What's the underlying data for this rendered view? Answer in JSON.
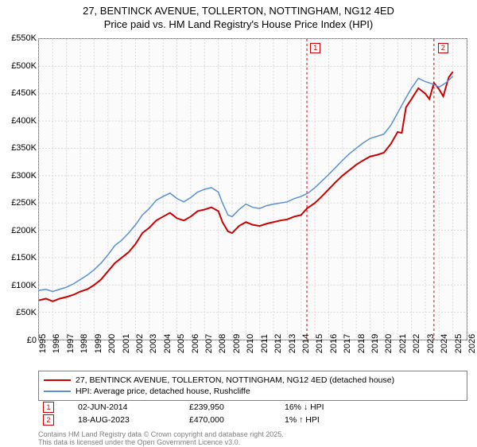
{
  "title_line1": "27, BENTINCK AVENUE, TOLLERTON, NOTTINGHAM, NG12 4ED",
  "title_line2": "Price paid vs. HM Land Registry's House Price Index (HPI)",
  "chart": {
    "type": "line",
    "background_color": "#fbfbfb",
    "border_color": "#808080",
    "grid_color": "#d9d9d9",
    "x": {
      "min": 1995,
      "max": 2026,
      "ticks": [
        1995,
        1996,
        1997,
        1998,
        1999,
        2000,
        2001,
        2002,
        2003,
        2004,
        2005,
        2006,
        2007,
        2008,
        2009,
        2010,
        2011,
        2012,
        2013,
        2014,
        2015,
        2016,
        2017,
        2018,
        2019,
        2020,
        2021,
        2022,
        2023,
        2024,
        2025,
        2026
      ]
    },
    "y": {
      "min": 0,
      "max": 550,
      "ticks": [
        0,
        50,
        100,
        150,
        200,
        250,
        300,
        350,
        400,
        450,
        500,
        550
      ],
      "tick_prefix": "£",
      "tick_suffix": "K"
    },
    "series": [
      {
        "name": "price_paid",
        "color": "#cc0000",
        "width": 2,
        "data": [
          [
            1995,
            72
          ],
          [
            1995.5,
            75
          ],
          [
            1996,
            70
          ],
          [
            1996.5,
            75
          ],
          [
            1997,
            78
          ],
          [
            1997.5,
            82
          ],
          [
            1998,
            88
          ],
          [
            1998.5,
            92
          ],
          [
            1999,
            100
          ],
          [
            1999.5,
            110
          ],
          [
            2000,
            125
          ],
          [
            2000.5,
            140
          ],
          [
            2001,
            150
          ],
          [
            2001.5,
            160
          ],
          [
            2002,
            175
          ],
          [
            2002.5,
            195
          ],
          [
            2003,
            205
          ],
          [
            2003.5,
            218
          ],
          [
            2004,
            225
          ],
          [
            2004.5,
            232
          ],
          [
            2005,
            222
          ],
          [
            2005.5,
            218
          ],
          [
            2006,
            225
          ],
          [
            2006.5,
            235
          ],
          [
            2007,
            238
          ],
          [
            2007.5,
            242
          ],
          [
            2008,
            235
          ],
          [
            2008.3,
            215
          ],
          [
            2008.7,
            198
          ],
          [
            2009,
            195
          ],
          [
            2009.5,
            208
          ],
          [
            2010,
            215
          ],
          [
            2010.5,
            210
          ],
          [
            2011,
            208
          ],
          [
            2011.5,
            212
          ],
          [
            2012,
            215
          ],
          [
            2012.5,
            218
          ],
          [
            2013,
            220
          ],
          [
            2013.5,
            225
          ],
          [
            2014,
            228
          ],
          [
            2014.42,
            240
          ],
          [
            2015,
            250
          ],
          [
            2015.5,
            262
          ],
          [
            2016,
            275
          ],
          [
            2016.5,
            288
          ],
          [
            2017,
            300
          ],
          [
            2017.5,
            310
          ],
          [
            2018,
            320
          ],
          [
            2018.5,
            328
          ],
          [
            2019,
            335
          ],
          [
            2019.5,
            338
          ],
          [
            2020,
            342
          ],
          [
            2020.5,
            358
          ],
          [
            2021,
            380
          ],
          [
            2021.3,
            378
          ],
          [
            2021.6,
            425
          ],
          [
            2022,
            440
          ],
          [
            2022.5,
            460
          ],
          [
            2023,
            450
          ],
          [
            2023.3,
            440
          ],
          [
            2023.63,
            470
          ],
          [
            2024,
            458
          ],
          [
            2024.3,
            445
          ],
          [
            2024.7,
            480
          ],
          [
            2025,
            490
          ]
        ]
      },
      {
        "name": "hpi",
        "color": "#5b8fd6",
        "width": 1.5,
        "data": [
          [
            1995,
            90
          ],
          [
            1995.5,
            92
          ],
          [
            1996,
            88
          ],
          [
            1996.5,
            92
          ],
          [
            1997,
            96
          ],
          [
            1997.5,
            102
          ],
          [
            1998,
            110
          ],
          [
            1998.5,
            118
          ],
          [
            1999,
            128
          ],
          [
            1999.5,
            140
          ],
          [
            2000,
            155
          ],
          [
            2000.5,
            172
          ],
          [
            2001,
            182
          ],
          [
            2001.5,
            195
          ],
          [
            2002,
            210
          ],
          [
            2002.5,
            228
          ],
          [
            2003,
            240
          ],
          [
            2003.5,
            255
          ],
          [
            2004,
            262
          ],
          [
            2004.5,
            268
          ],
          [
            2005,
            258
          ],
          [
            2005.5,
            252
          ],
          [
            2006,
            260
          ],
          [
            2006.5,
            270
          ],
          [
            2007,
            275
          ],
          [
            2007.5,
            278
          ],
          [
            2008,
            270
          ],
          [
            2008.3,
            250
          ],
          [
            2008.7,
            228
          ],
          [
            2009,
            225
          ],
          [
            2009.5,
            238
          ],
          [
            2010,
            248
          ],
          [
            2010.5,
            242
          ],
          [
            2011,
            240
          ],
          [
            2011.5,
            245
          ],
          [
            2012,
            248
          ],
          [
            2012.5,
            250
          ],
          [
            2013,
            252
          ],
          [
            2013.5,
            258
          ],
          [
            2014,
            262
          ],
          [
            2014.5,
            268
          ],
          [
            2015,
            278
          ],
          [
            2015.5,
            290
          ],
          [
            2016,
            302
          ],
          [
            2016.5,
            315
          ],
          [
            2017,
            328
          ],
          [
            2017.5,
            340
          ],
          [
            2018,
            350
          ],
          [
            2018.5,
            360
          ],
          [
            2019,
            368
          ],
          [
            2019.5,
            372
          ],
          [
            2020,
            376
          ],
          [
            2020.5,
            392
          ],
          [
            2021,
            415
          ],
          [
            2021.5,
            438
          ],
          [
            2022,
            460
          ],
          [
            2022.5,
            478
          ],
          [
            2023,
            472
          ],
          [
            2023.5,
            468
          ],
          [
            2024,
            462
          ],
          [
            2024.5,
            470
          ],
          [
            2025,
            482
          ]
        ]
      }
    ]
  },
  "markers": [
    {
      "n": "1",
      "x": 2014.42,
      "date": "02-JUN-2014",
      "price": "£239,950",
      "delta": "16% ↓ HPI",
      "color": "#cc0000"
    },
    {
      "n": "2",
      "x": 2023.63,
      "date": "18-AUG-2023",
      "price": "£470,000",
      "delta": "1% ↑ HPI",
      "color": "#cc0000"
    }
  ],
  "legend": [
    {
      "color": "#cc0000",
      "label": "27, BENTINCK AVENUE, TOLLERTON, NOTTINGHAM, NG12 4ED (detached house)"
    },
    {
      "color": "#5b8fd6",
      "label": "HPI: Average price, detached house, Rushcliffe"
    }
  ],
  "footer_line1": "Contains HM Land Registry data © Crown copyright and database right 2025.",
  "footer_line2": "This data is licensed under the Open Government Licence v3.0."
}
